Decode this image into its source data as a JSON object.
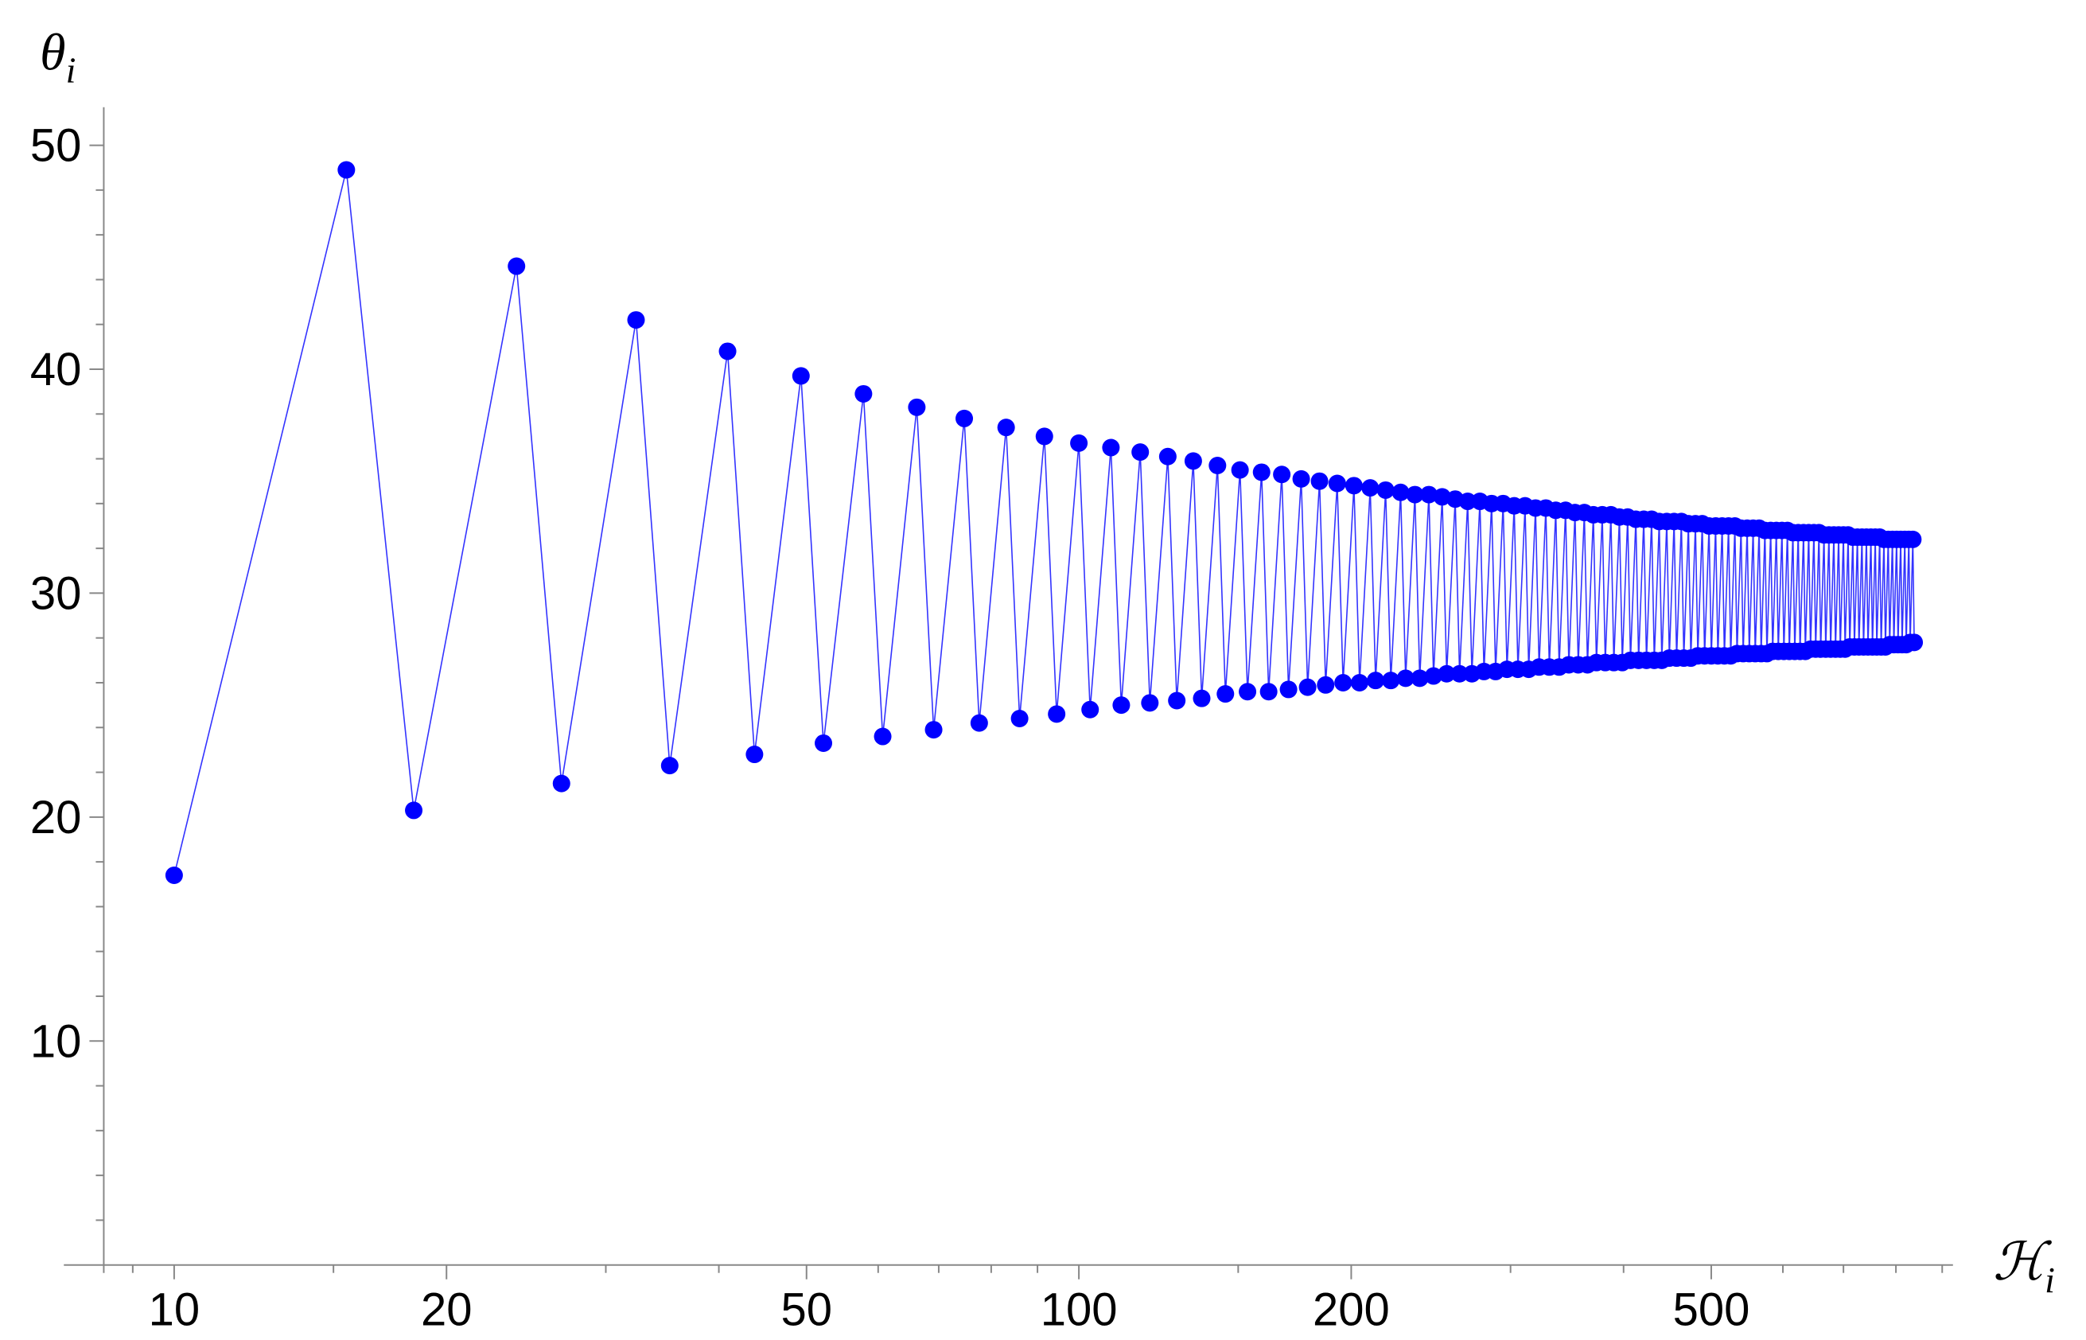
{
  "chart_data": {
    "type": "line",
    "xlabel": [
      "ℋ",
      "i"
    ],
    "ylabel": [
      "θ",
      "i"
    ],
    "xscale": "log",
    "xlim": [
      8.36,
      925
    ],
    "ylim": [
      0,
      51.7
    ],
    "xticks": [
      10,
      20,
      50,
      100,
      200,
      500
    ],
    "yticks": [
      10,
      20,
      30,
      40,
      50
    ],
    "xminorticks": [
      9,
      15,
      30,
      40,
      60,
      70,
      80,
      90,
      150,
      300,
      400,
      600,
      700,
      800,
      900
    ],
    "yminorticks": [
      2,
      4,
      6,
      8,
      12,
      14,
      16,
      18,
      22,
      24,
      26,
      28,
      32,
      34,
      36,
      38,
      42,
      44,
      46,
      48
    ],
    "markers": true,
    "series": [
      {
        "color": "#0000ff",
        "x": [
          10,
          15.5,
          18.4,
          23.9,
          26.8,
          32.4,
          35.3,
          40.9,
          43.8,
          49.3,
          52.2,
          57.8,
          60.7,
          66.2,
          69.1,
          74.7,
          77.6,
          83.1,
          86.0,
          91.6,
          94.5,
          100.0,
          102.9,
          108.5,
          111.4,
          116.9,
          119.8,
          125.4,
          128.3,
          133.8,
          136.7,
          142.3,
          145.2,
          150.7,
          153.6,
          159.2,
          162.1,
          167.6,
          170.5,
          176.1,
          179.0,
          184.5,
          187.4,
          193.0,
          195.9,
          201.4,
          204.3,
          209.9,
          212.8,
          218.3,
          221.2,
          226.8,
          229.7,
          235.2,
          238.1,
          243.7,
          246.6,
          252.1,
          255.0,
          260.6,
          263.5,
          269.0,
          271.9,
          277.5,
          280.4,
          285.9,
          288.8,
          294.4,
          297.3,
          302.8,
          305.7,
          311.3,
          314.2,
          319.7,
          322.6,
          328.2,
          331.1,
          336.6,
          339.5,
          345.1,
          348.0,
          353.5,
          356.4,
          362.0,
          364.9,
          370.4,
          373.3,
          378.9,
          381.8,
          387.3,
          390.2,
          395.8,
          398.7,
          404.2,
          407.1,
          412.7,
          415.6,
          421.1,
          424.0,
          429.6,
          432.5,
          438.0,
          440.9,
          446.5,
          449.4,
          454.9,
          457.8,
          463.4,
          466.3,
          471.8,
          474.7,
          480.3,
          483.2,
          488.7,
          491.6,
          497.2,
          500.1,
          505.6,
          508.5,
          514.1,
          517.0,
          522.5,
          525.4,
          531.0,
          533.9,
          539.4,
          542.3,
          547.9,
          550.8,
          556.3,
          559.2,
          564.8,
          567.7,
          573.2,
          576.1,
          581.7,
          584.6,
          590.1,
          593.0,
          598.6,
          601.5,
          607.0,
          609.9,
          615.5,
          618.4,
          623.9,
          626.8,
          632.4,
          635.3,
          640.8,
          643.7,
          649.3,
          652.2,
          657.7,
          660.6,
          666.2,
          669.1,
          674.6,
          677.5,
          683.1,
          686.0,
          691.5,
          694.4,
          700.0,
          702.9,
          708.4,
          711.3,
          716.9,
          719.8,
          725.3,
          728.2,
          733.8,
          736.7,
          742.2,
          745.1,
          750.7,
          753.6,
          759.1,
          762.0,
          767.6,
          770.5,
          776.0,
          778.9,
          784.5,
          787.4,
          792.9,
          795.8,
          801.4,
          804.3,
          809.8,
          812.7,
          818.3,
          821.2,
          826.7,
          829.6,
          835.2,
          838.1
        ],
        "values": [
          17.4,
          48.9,
          20.3,
          44.6,
          21.5,
          42.2,
          22.3,
          40.8,
          22.8,
          39.7,
          23.3,
          38.9,
          23.6,
          38.3,
          23.9,
          37.8,
          24.2,
          37.4,
          24.4,
          37.0,
          24.6,
          36.7,
          24.8,
          36.5,
          25.0,
          36.3,
          25.1,
          36.1,
          25.2,
          35.9,
          25.3,
          35.7,
          25.5,
          35.5,
          25.6,
          35.4,
          25.6,
          35.3,
          25.7,
          35.1,
          25.8,
          35.0,
          25.9,
          34.9,
          26.0,
          34.8,
          26.0,
          34.7,
          26.1,
          34.6,
          26.1,
          34.5,
          26.2,
          34.4,
          26.2,
          34.4,
          26.3,
          34.3,
          26.4,
          34.2,
          26.4,
          34.1,
          26.4,
          34.1,
          26.5,
          34.0,
          26.5,
          34.0,
          26.6,
          33.9,
          26.6,
          33.9,
          26.6,
          33.8,
          26.7,
          33.8,
          26.7,
          33.7,
          26.7,
          33.7,
          26.8,
          33.6,
          26.8,
          33.6,
          26.8,
          33.5,
          26.9,
          33.5,
          26.9,
          33.5,
          26.9,
          33.4,
          26.9,
          33.4,
          27.0,
          33.3,
          27.0,
          33.3,
          27.0,
          33.3,
          27.0,
          33.2,
          27.0,
          33.2,
          27.1,
          33.2,
          27.1,
          33.2,
          27.1,
          33.1,
          27.1,
          33.1,
          27.2,
          33.1,
          27.2,
          33.0,
          27.2,
          33.0,
          27.2,
          33.0,
          27.2,
          33.0,
          27.2,
          33.0,
          27.3,
          32.9,
          27.3,
          32.9,
          27.3,
          32.9,
          27.3,
          32.9,
          27.3,
          32.8,
          27.3,
          32.8,
          27.4,
          32.8,
          27.4,
          32.8,
          27.4,
          32.8,
          27.4,
          32.7,
          27.4,
          32.7,
          27.4,
          32.7,
          27.4,
          32.7,
          27.5,
          32.7,
          27.5,
          32.7,
          27.5,
          32.6,
          27.5,
          32.6,
          27.5,
          32.6,
          27.5,
          32.6,
          27.5,
          32.6,
          27.5,
          32.6,
          27.6,
          32.5,
          27.6,
          32.5,
          27.6,
          32.5,
          27.6,
          32.5,
          27.6,
          32.5,
          27.6,
          32.5,
          27.6,
          32.5,
          27.6,
          32.4,
          27.6,
          32.4,
          27.7,
          32.4,
          27.7,
          32.4,
          27.7,
          32.4,
          27.7,
          32.4,
          27.7,
          32.4,
          27.8,
          32.4,
          27.8
        ]
      }
    ]
  }
}
